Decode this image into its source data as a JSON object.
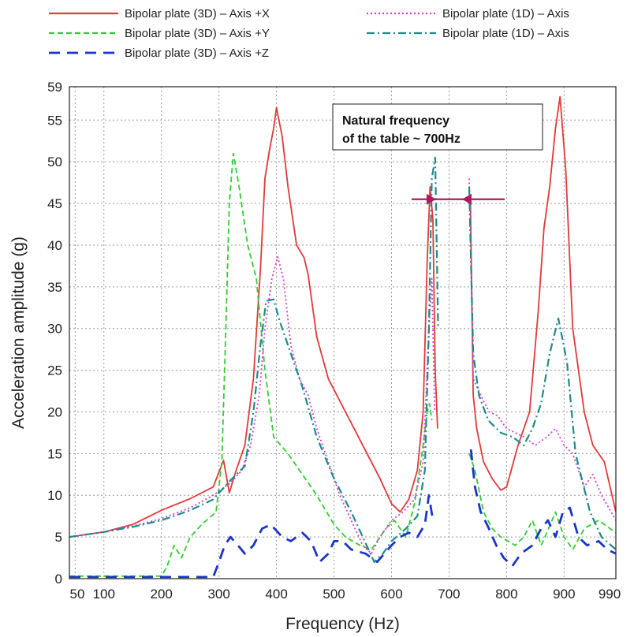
{
  "chart_data": {
    "type": "line",
    "xlabel": "Frequency (Hz)",
    "ylabel": "Acceleration amplitude (g)",
    "xlim": [
      40,
      990
    ],
    "ylim": [
      0,
      59
    ],
    "x_ticks": [
      50,
      100,
      200,
      300,
      400,
      500,
      600,
      700,
      800,
      900,
      990
    ],
    "x_tick_labels": [
      "50",
      "100",
      "200",
      "300",
      "400",
      "500",
      "600",
      "700",
      "800",
      "900",
      "990"
    ],
    "y_ticks": [
      0,
      5,
      10,
      15,
      20,
      25,
      30,
      35,
      40,
      45,
      50,
      55,
      59
    ],
    "y_tick_labels": [
      "0",
      "5",
      "10",
      "15",
      "20",
      "25",
      "30",
      "35",
      "40",
      "45",
      "50",
      "55",
      "59"
    ],
    "grid": true,
    "legend_position": "top",
    "annotation": {
      "lines": [
        "Natural frequency",
        "of the table ~ 700Hz"
      ],
      "arrow_y": 45.5,
      "arrow_x_range": [
        665,
        735
      ]
    },
    "series": [
      {
        "name": "Bipolar plate (3D) – Axis +X",
        "color": "#e03a3a",
        "dash": "",
        "width": 1.8,
        "points": [
          [
            40,
            5
          ],
          [
            100,
            5.6
          ],
          [
            150,
            6.5
          ],
          [
            200,
            8.2
          ],
          [
            250,
            9.6
          ],
          [
            290,
            11
          ],
          [
            308,
            14.2
          ],
          [
            318,
            10.3
          ],
          [
            330,
            13
          ],
          [
            345,
            16
          ],
          [
            360,
            24
          ],
          [
            372,
            37
          ],
          [
            380,
            48
          ],
          [
            388,
            51.5
          ],
          [
            395,
            54
          ],
          [
            400,
            56.5
          ],
          [
            410,
            53
          ],
          [
            420,
            47
          ],
          [
            435,
            40
          ],
          [
            448,
            38.5
          ],
          [
            455,
            36.5
          ],
          [
            470,
            29
          ],
          [
            490,
            24
          ],
          [
            520,
            20
          ],
          [
            550,
            16
          ],
          [
            580,
            12
          ],
          [
            600,
            9
          ],
          [
            615,
            8
          ],
          [
            630,
            9.5
          ],
          [
            645,
            13
          ],
          [
            655,
            20
          ],
          [
            662,
            38
          ],
          [
            667,
            47
          ],
          [
            672,
            43
          ],
          [
            676,
            25
          ],
          [
            680,
            18
          ],
          null,
          [
            737,
            46
          ],
          [
            742,
            22
          ],
          [
            748,
            18
          ],
          [
            760,
            14
          ],
          [
            775,
            12
          ],
          [
            790,
            10.6
          ],
          [
            800,
            11
          ],
          [
            820,
            16
          ],
          [
            840,
            20
          ],
          [
            855,
            32
          ],
          [
            865,
            42
          ],
          [
            875,
            47
          ],
          [
            885,
            54
          ],
          [
            893,
            57.8
          ],
          [
            903,
            49
          ],
          [
            915,
            30
          ],
          [
            935,
            20
          ],
          [
            950,
            16
          ],
          [
            970,
            14
          ],
          [
            990,
            8
          ]
        ]
      },
      {
        "name": "Bipolar plate (3D) – Axis +Y",
        "color": "#33cc33",
        "dash": "7,4",
        "width": 1.8,
        "points": [
          [
            40,
            0.3
          ],
          [
            100,
            0.3
          ],
          [
            150,
            0.3
          ],
          [
            200,
            0.3
          ],
          [
            210,
            1.5
          ],
          [
            222,
            4
          ],
          [
            235,
            2.5
          ],
          [
            250,
            5
          ],
          [
            270,
            6.5
          ],
          [
            295,
            8
          ],
          [
            305,
            14
          ],
          [
            312,
            30
          ],
          [
            318,
            45
          ],
          [
            325,
            51
          ],
          [
            335,
            47
          ],
          [
            350,
            40
          ],
          [
            365,
            36
          ],
          [
            380,
            25
          ],
          [
            395,
            17
          ],
          [
            420,
            15
          ],
          [
            440,
            13
          ],
          [
            470,
            10
          ],
          [
            500,
            6.5
          ],
          [
            520,
            5
          ],
          [
            545,
            4
          ],
          [
            565,
            3.5
          ],
          [
            590,
            6
          ],
          [
            605,
            7
          ],
          [
            625,
            5
          ],
          [
            640,
            9
          ],
          [
            655,
            16
          ],
          [
            662,
            20
          ],
          [
            666,
            21
          ],
          [
            670,
            19
          ],
          null,
          [
            735,
            15
          ],
          [
            745,
            13
          ],
          [
            760,
            8
          ],
          [
            775,
            6
          ],
          [
            790,
            5
          ],
          [
            815,
            4
          ],
          [
            830,
            5
          ],
          [
            845,
            7
          ],
          [
            860,
            4
          ],
          [
            870,
            5.5
          ],
          [
            885,
            8
          ],
          [
            900,
            5
          ],
          [
            915,
            3.5
          ],
          [
            935,
            6
          ],
          [
            960,
            7
          ],
          [
            990,
            5.5
          ]
        ]
      },
      {
        "name": "Bipolar plate (3D) – Axis +Z",
        "color": "#1a35c8",
        "dash": "14,9",
        "width": 2.8,
        "points": [
          [
            40,
            0.2
          ],
          [
            100,
            0.2
          ],
          [
            150,
            0.2
          ],
          [
            200,
            0.2
          ],
          [
            250,
            0.2
          ],
          [
            290,
            0.2
          ],
          [
            300,
            2
          ],
          [
            310,
            4
          ],
          [
            320,
            5
          ],
          [
            333,
            4
          ],
          [
            345,
            3
          ],
          [
            360,
            4
          ],
          [
            375,
            6
          ],
          [
            390,
            6.5
          ],
          [
            410,
            5
          ],
          [
            425,
            4.5
          ],
          [
            445,
            5.5
          ],
          [
            460,
            4.5
          ],
          [
            475,
            2
          ],
          [
            490,
            3
          ],
          [
            500,
            4.5
          ],
          [
            515,
            4.5
          ],
          [
            530,
            3.5
          ],
          [
            555,
            3
          ],
          [
            575,
            2
          ],
          [
            600,
            4
          ],
          [
            615,
            5
          ],
          [
            630,
            5.5
          ],
          [
            645,
            5
          ],
          [
            658,
            6.5
          ],
          [
            665,
            10
          ],
          [
            672,
            7
          ],
          null,
          [
            738,
            15.5
          ],
          [
            745,
            11
          ],
          [
            755,
            8
          ],
          [
            768,
            6.2
          ],
          [
            782,
            4
          ],
          [
            795,
            2.5
          ],
          [
            810,
            1.5
          ],
          [
            825,
            3
          ],
          [
            845,
            4
          ],
          [
            860,
            6
          ],
          [
            872,
            7
          ],
          [
            885,
            5
          ],
          [
            898,
            8
          ],
          [
            910,
            8.5
          ],
          [
            925,
            5
          ],
          [
            940,
            4
          ],
          [
            960,
            4.5
          ],
          [
            975,
            3.5
          ],
          [
            990,
            3
          ]
        ]
      },
      {
        "name": "Bipolar plate (1D) – Axis",
        "color": "#d63cd6",
        "dash": "2,3",
        "width": 1.8,
        "points": [
          [
            40,
            5
          ],
          [
            100,
            5.6
          ],
          [
            150,
            6.3
          ],
          [
            200,
            7.2
          ],
          [
            250,
            8.5
          ],
          [
            290,
            10
          ],
          [
            320,
            11.5
          ],
          [
            340,
            13
          ],
          [
            355,
            16
          ],
          [
            370,
            22
          ],
          [
            380,
            30
          ],
          [
            392,
            36
          ],
          [
            402,
            38.6
          ],
          [
            412,
            36
          ],
          [
            425,
            28
          ],
          [
            440,
            24
          ],
          [
            455,
            22
          ],
          [
            470,
            18
          ],
          [
            490,
            14
          ],
          [
            510,
            10
          ],
          [
            530,
            7
          ],
          [
            550,
            4
          ],
          [
            565,
            3
          ],
          [
            580,
            5
          ],
          [
            600,
            7
          ],
          [
            620,
            8
          ],
          [
            640,
            9.5
          ],
          [
            655,
            14
          ],
          [
            665,
            30
          ],
          [
            670,
            36
          ],
          [
            675,
            20
          ],
          null,
          [
            735,
            48
          ],
          [
            742,
            24
          ],
          [
            755,
            22
          ],
          [
            770,
            20
          ],
          [
            785,
            19.5
          ],
          [
            800,
            18
          ],
          [
            815,
            17.5
          ],
          [
            830,
            17
          ],
          [
            850,
            16
          ],
          [
            870,
            17
          ],
          [
            885,
            18
          ],
          [
            900,
            16
          ],
          [
            915,
            15
          ],
          [
            935,
            11
          ],
          [
            950,
            12.5
          ],
          [
            965,
            10
          ],
          [
            990,
            7
          ]
        ]
      },
      {
        "name": "Bipolar plate (1D) – Axis",
        "color": "#1f8a8a",
        "dash": "10,4,2,4",
        "width": 2.2,
        "points": [
          [
            40,
            5
          ],
          [
            100,
            5.6
          ],
          [
            150,
            6.2
          ],
          [
            200,
            7
          ],
          [
            250,
            8.2
          ],
          [
            290,
            9.5
          ],
          [
            320,
            11.8
          ],
          [
            345,
            13.5
          ],
          [
            360,
            20
          ],
          [
            372,
            28
          ],
          [
            382,
            33.3
          ],
          [
            395,
            33.5
          ],
          [
            405,
            31
          ],
          [
            425,
            27
          ],
          [
            445,
            23
          ],
          [
            470,
            17
          ],
          [
            500,
            12
          ],
          [
            530,
            8
          ],
          [
            550,
            5
          ],
          [
            570,
            2
          ],
          [
            585,
            3
          ],
          [
            600,
            4.5
          ],
          [
            625,
            6
          ],
          [
            645,
            7.5
          ],
          [
            658,
            13
          ],
          [
            665,
            30
          ],
          [
            670,
            48
          ],
          [
            676,
            50.5
          ],
          [
            681,
            30
          ],
          null,
          [
            735,
            47
          ],
          [
            742,
            27
          ],
          [
            752,
            22
          ],
          [
            768,
            19
          ],
          [
            790,
            17.5
          ],
          [
            810,
            17
          ],
          [
            830,
            16
          ],
          [
            845,
            18
          ],
          [
            860,
            21
          ],
          [
            875,
            27
          ],
          [
            890,
            31.2
          ],
          [
            905,
            26
          ],
          [
            920,
            15
          ],
          [
            945,
            8
          ],
          [
            965,
            5
          ],
          [
            990,
            3.5
          ]
        ]
      }
    ]
  }
}
